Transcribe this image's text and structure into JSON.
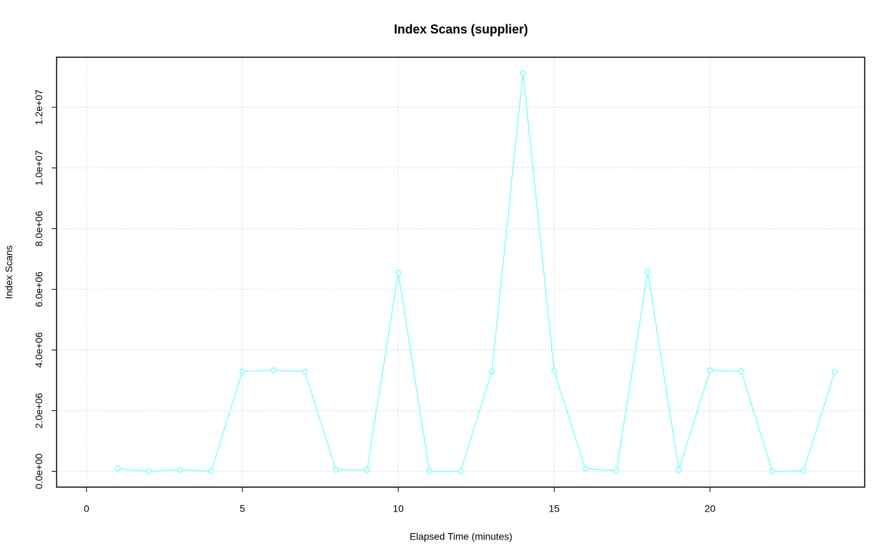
{
  "chart_data": {
    "type": "line",
    "title": "Index Scans (supplier)",
    "x_label": "Elapsed Time (minutes)",
    "y_label": "Index Scans",
    "x": [
      1,
      2,
      3,
      4,
      5,
      6,
      7,
      8,
      9,
      10,
      11,
      12,
      13,
      14,
      15,
      16,
      17,
      18,
      19,
      20,
      21,
      22,
      23,
      24
    ],
    "series": [
      {
        "name": "Index Scans",
        "color": "#7fffff",
        "values": [
          90000,
          0,
          50000,
          10000,
          3290000,
          3330000,
          3290000,
          50000,
          50000,
          6550000,
          0,
          0,
          3290000,
          13130000,
          3310000,
          90000,
          20000,
          6570000,
          50000,
          3330000,
          3290000,
          0,
          20000,
          3270000
        ]
      }
    ],
    "xlim": [
      -0.96,
      24.96
    ],
    "xticks": [
      0,
      5,
      10,
      15,
      20
    ],
    "ylim": [
      -520000,
      13650000
    ],
    "yticks": [
      {
        "value": 0,
        "label": "0.0e+00"
      },
      {
        "value": 2000000,
        "label": "2.0e+06"
      },
      {
        "value": 4000000,
        "label": "4.0e+06"
      },
      {
        "value": 6000000,
        "label": "6.0e+06"
      },
      {
        "value": 8000000,
        "label": "8.0e+06"
      },
      {
        "value": 10000000,
        "label": "1.0e+07"
      },
      {
        "value": 12000000,
        "label": "1.2e+07"
      }
    ],
    "grid": true
  }
}
